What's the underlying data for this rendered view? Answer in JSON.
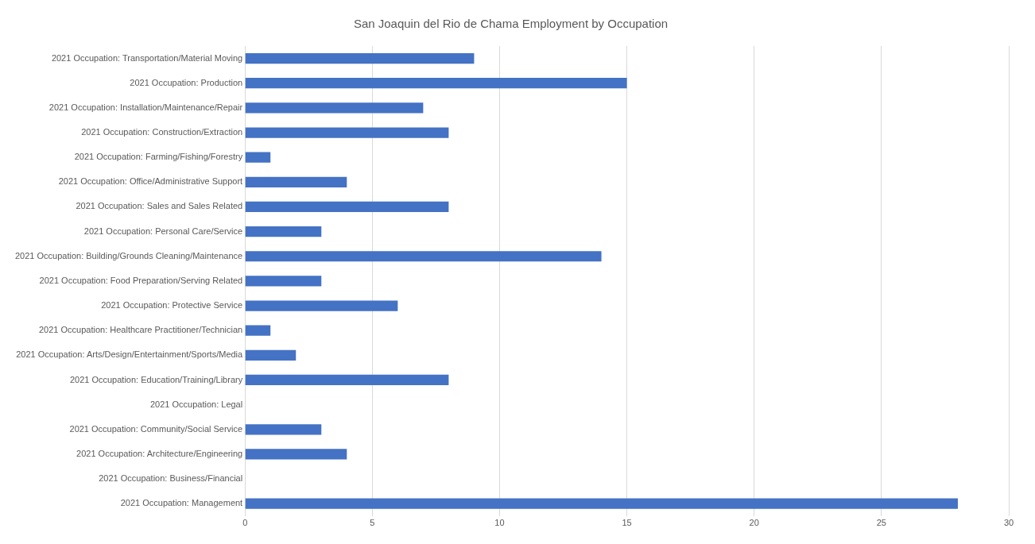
{
  "chart_data": {
    "type": "bar",
    "orientation": "horizontal",
    "title": "San Joaquin del Rio de Chama Employment by Occupation",
    "categories": [
      "2021 Occupation: Transportation/Material Moving",
      "2021 Occupation: Production",
      "2021 Occupation: Installation/Maintenance/Repair",
      "2021 Occupation: Construction/Extraction",
      "2021 Occupation: Farming/Fishing/Forestry",
      "2021 Occupation: Office/Administrative Support",
      "2021 Occupation: Sales and Sales Related",
      "2021 Occupation: Personal Care/Service",
      "2021 Occupation: Building/Grounds Cleaning/Maintenance",
      "2021 Occupation: Food Preparation/Serving Related",
      "2021 Occupation: Protective Service",
      "2021 Occupation: Healthcare Practitioner/Technician",
      "2021 Occupation: Arts/Design/Entertainment/Sports/Media",
      "2021 Occupation: Education/Training/Library",
      "2021 Occupation: Legal",
      "2021 Occupation: Community/Social Service",
      "2021 Occupation: Architecture/Engineering",
      "2021 Occupation: Business/Financial",
      "2021 Occupation: Management"
    ],
    "values": [
      9,
      15,
      7,
      8,
      1,
      4,
      8,
      3,
      14,
      3,
      6,
      1,
      2,
      8,
      0,
      3,
      4,
      0,
      28
    ],
    "color": "#4472c4",
    "xlim": [
      0,
      30
    ],
    "xticks": [
      0,
      5,
      10,
      15,
      20,
      25,
      30
    ],
    "grid": "x",
    "legend": false
  }
}
